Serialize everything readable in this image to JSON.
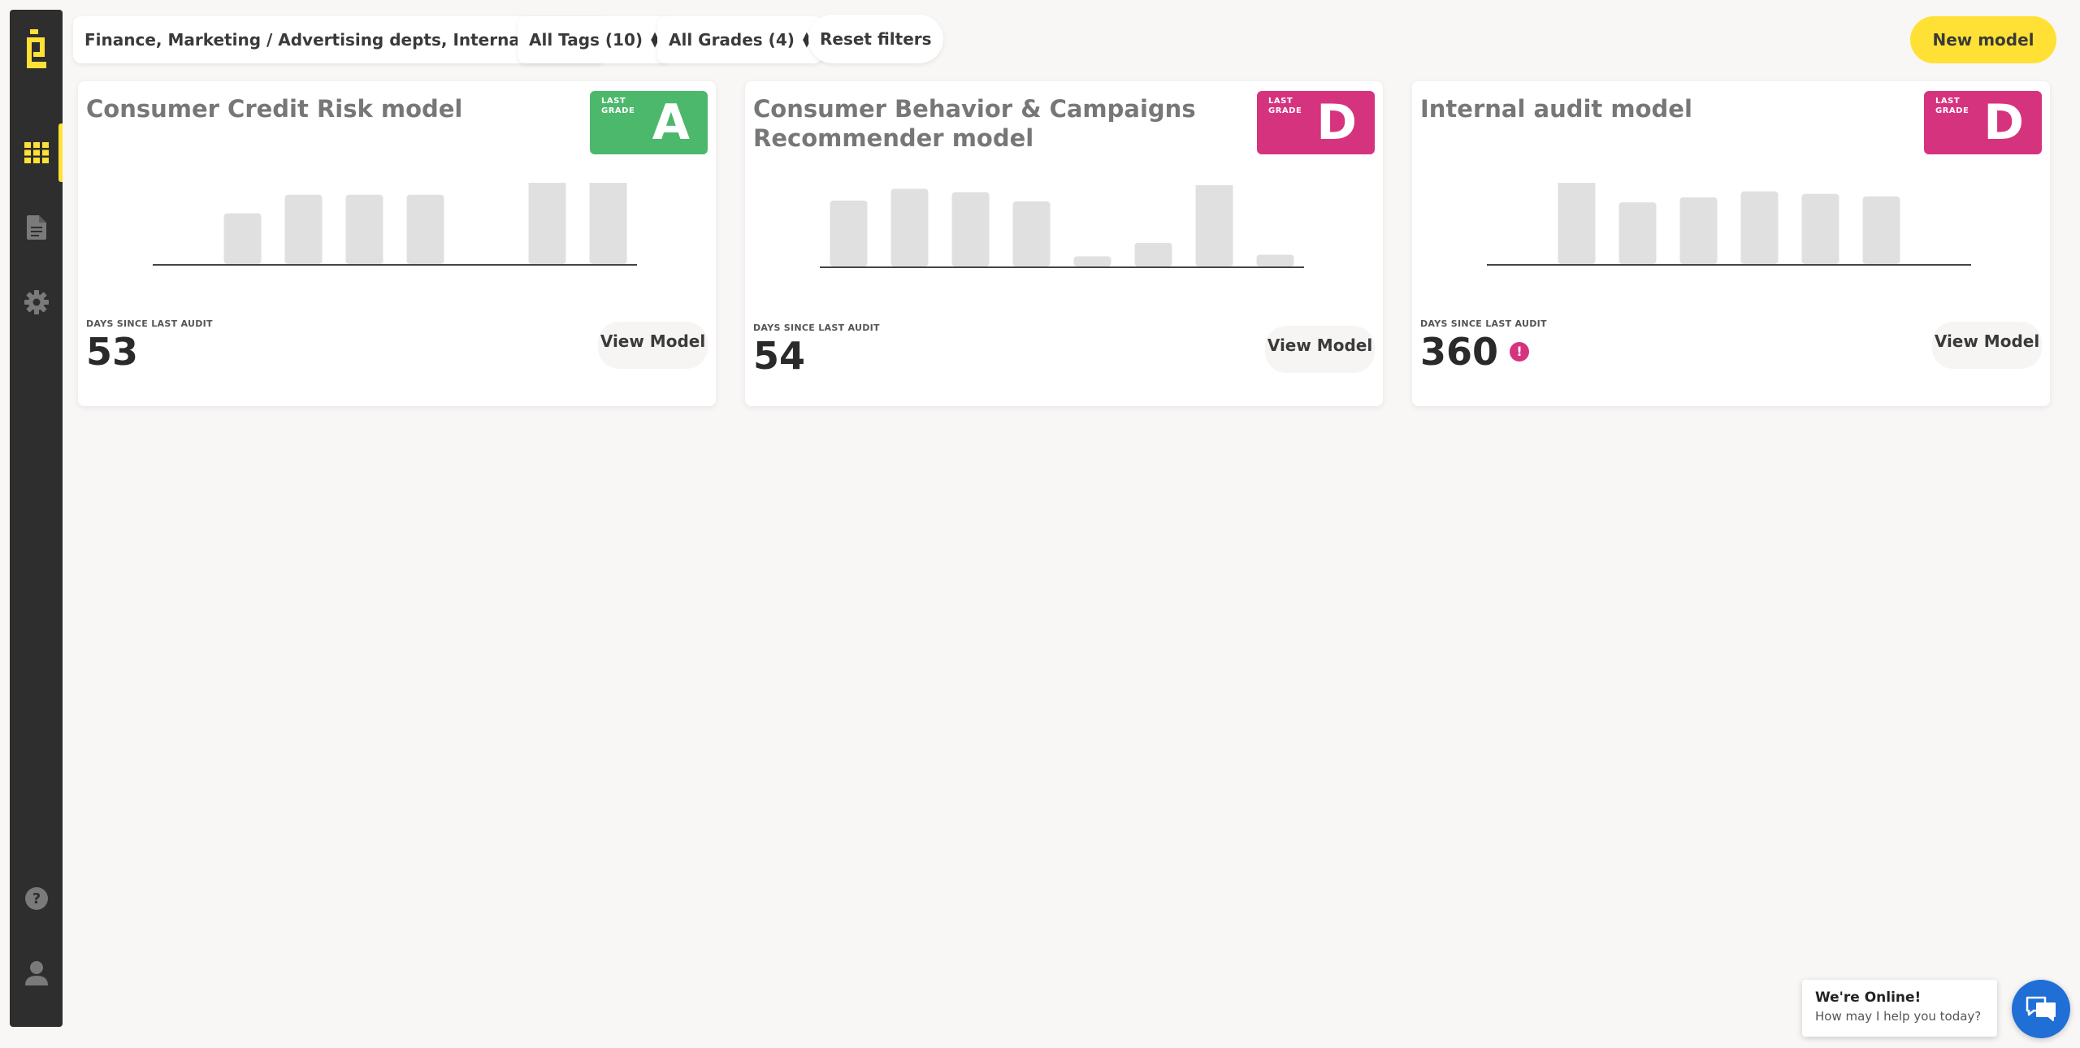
{
  "sidebar": {
    "logo": "e-logo-icon",
    "items": [
      {
        "icon": "grid-icon",
        "active": true
      },
      {
        "icon": "document-icon",
        "active": false
      },
      {
        "icon": "gear-icon",
        "active": false
      },
      {
        "icon": "help-icon",
        "active": false
      },
      {
        "icon": "user-icon",
        "active": false
      }
    ]
  },
  "filters": {
    "departments": "Finance, Marketing / Advertising depts, Internal audit",
    "tags": "All Tags (10)",
    "grades": "All Grades (4)",
    "reset": "Reset filters"
  },
  "new_model_label": "New model",
  "cards": [
    {
      "title": "Consumer Credit Risk model",
      "grade_label": "LAST GRADE",
      "grade": "A",
      "grade_color": "#4cb86b",
      "days_label": "DAYS SINCE LAST AUDIT",
      "days": "53",
      "warning": false,
      "view_label": "View Model",
      "bars": [
        0,
        0.6,
        0.82,
        0.82,
        0.82,
        0,
        1.0,
        1.0
      ]
    },
    {
      "title": "Consumer Behavior & Campaigns Recommender model",
      "grade_label": "LAST GRADE",
      "grade": "D",
      "grade_color": "#d6337f",
      "days_label": "DAYS SINCE LAST AUDIT",
      "days": "54",
      "warning": false,
      "view_label": "View Model",
      "bars": [
        0.78,
        0.92,
        0.88,
        0.77,
        0.12,
        0.28,
        1.0,
        0.14
      ]
    },
    {
      "title": "Internal audit model",
      "grade_label": "LAST GRADE",
      "grade": "D",
      "grade_color": "#d6337f",
      "days_label": "DAYS SINCE LAST AUDIT",
      "days": "360",
      "warning": true,
      "view_label": "View Model",
      "bars": [
        1.0,
        0.73,
        0.79,
        0.86,
        0.83,
        0.8
      ]
    }
  ],
  "chat": {
    "title": "We're Online!",
    "subtitle": "How may I help you today?",
    "icon": "chat-icon"
  },
  "colors": {
    "accent": "#ffe136",
    "sidebar_bg": "#2e2e2e",
    "bar": "#e0e0e0",
    "chat_blue": "#1f6fd6"
  }
}
